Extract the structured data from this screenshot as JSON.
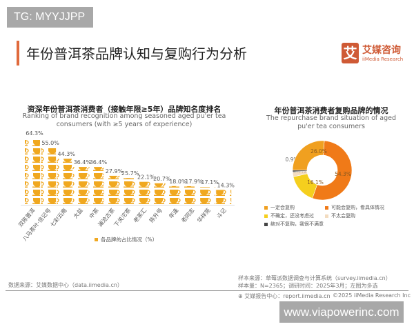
{
  "watermark_top": "TG: MYYJJPP",
  "watermark_bottom": "www.viapowerinc.com",
  "header": {
    "title": "年份普洱茶品牌认知与复购行为分析",
    "logo_cn": "艾媒咨询",
    "logo_en": "iiMedia Research",
    "logo_mark": "艾"
  },
  "colors": {
    "accent": "#e06a3c",
    "bar": "#f0a820",
    "s1": "#f0a020",
    "s2": "#f07a18",
    "s3": "#f5cf1e",
    "s4": "#f3dcc0",
    "s5": "#444444"
  },
  "chart_data": [
    {
      "type": "bar",
      "title": "资深年份普洱茶消费者（接触年限≥5年）品牌知名度排名",
      "subtitle": "Ranking of brand recognition among seasoned aged pu'er tea consumers (with ≥5 years of experience)",
      "categories": [
        "双陈普洱",
        "八马茶叶·信记号",
        "七彩云南",
        "大益",
        "中茶",
        "澜沧古茶",
        "下关沱茶",
        "老茶汇",
        "陈升号",
        "年逢",
        "老同志",
        "华祥苑",
        "斗记"
      ],
      "values": [
        64.3,
        55.0,
        44.3,
        36.4,
        36.4,
        27.9,
        25.7,
        22.1,
        20.7,
        18.0,
        17.9,
        17.1,
        14.3
      ],
      "labels": [
        "64.3%",
        "55.0%",
        "44.3%",
        "36.4%",
        "36.4%",
        "27.9%",
        "25.7%",
        "22.1%",
        "20.7%",
        "18.0%",
        "17.9%",
        "17.1%",
        "14.3%"
      ],
      "legend": "各品牌的占比情况（%）",
      "legend_position": "bottom",
      "grid": false
    },
    {
      "type": "pie",
      "donut": true,
      "title": "年份普洱茶消费者复购品牌的情况",
      "subtitle": "The repurchase brand situation of aged pu'er tea consumers",
      "slices": [
        {
          "name": "可能会复购，看具体情况",
          "value": 54.3,
          "label": "54.3%",
          "color": "#f07a18"
        },
        {
          "name": "不确定，还没考虑过",
          "value": 16.1,
          "label": "16.1%",
          "color": "#f5cf1e"
        },
        {
          "name": "不太会复购",
          "value": 2.7,
          "label": "2.7%",
          "color": "#f3dcc0"
        },
        {
          "name": "绝对不复购，我很不满意",
          "value": 0.9,
          "label": "0.9%",
          "color": "#444444"
        },
        {
          "name": "一定会复购",
          "value": 26.0,
          "label": "26.0%",
          "color": "#f0a020"
        }
      ],
      "legend_order": [
        "一定会复购",
        "可能会复购，看具体情况",
        "不确定，还没考虑过",
        "不太会复购",
        "绝对不复购，我很不满意"
      ],
      "legend_position": "bottom"
    }
  ],
  "footer": {
    "data_source": "数据来源：艾媒数据中心（data.iimedia.cn）",
    "sample_source": "样本来源：草莓派数据调查与计算系统（survey.iimedia.cn）",
    "sample_size": "样本量：N=2365；调研时间：2025年3月；左图为多选",
    "report_center": "艾媒报告中心：report.iimedia.cn",
    "copyright": "©2025  iiMedia Research Inc"
  }
}
